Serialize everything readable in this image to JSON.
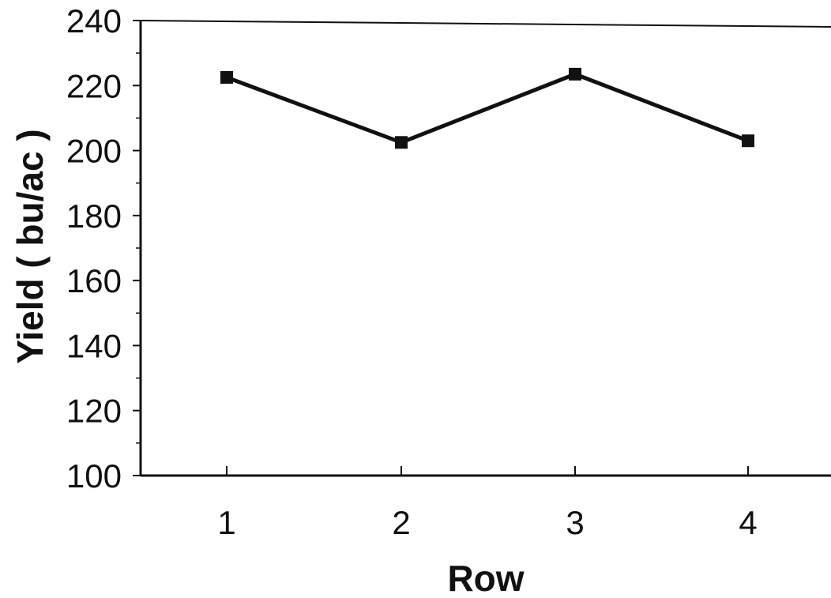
{
  "chart_data": {
    "type": "line",
    "title": "",
    "xlabel": "Row",
    "ylabel": "Yield ( bu/ac )",
    "categories": [
      "1",
      "2",
      "3",
      "4"
    ],
    "series": [
      {
        "values": [
          222.5,
          202.5,
          223.5,
          203
        ]
      }
    ],
    "ylim": [
      100,
      240
    ],
    "yticks": [
      "100",
      "120",
      "140",
      "160",
      "180",
      "200",
      "220",
      "240"
    ],
    "y_minor_step": 10,
    "grid": false,
    "legend": "none",
    "colors": {
      "line": "#111111",
      "marker": "#111111",
      "axis": "#111111"
    },
    "marker": "square"
  }
}
